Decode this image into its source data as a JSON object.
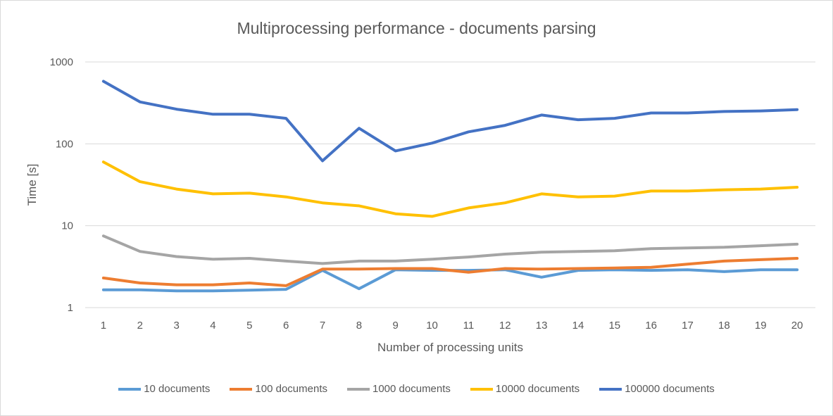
{
  "chart_data": {
    "type": "line",
    "title": "Multiprocessing performance - documents parsing",
    "xlabel": "Number of processing units",
    "ylabel": "Time [s]",
    "yscale": "log",
    "ylim": [
      1,
      1000
    ],
    "yticks": [
      "1",
      "10",
      "100",
      "1000"
    ],
    "grid": true,
    "legend_position": "bottom",
    "categories": [
      "1",
      "2",
      "3",
      "4",
      "5",
      "6",
      "7",
      "8",
      "9",
      "10",
      "11",
      "12",
      "13",
      "14",
      "15",
      "16",
      "17",
      "18",
      "19",
      "20"
    ],
    "series": [
      {
        "name": "10 documents",
        "color": "#5b9bd5",
        "values": [
          1.65,
          1.65,
          1.6,
          1.6,
          1.63,
          1.67,
          2.85,
          1.7,
          2.9,
          2.85,
          2.85,
          2.9,
          2.35,
          2.85,
          2.9,
          2.85,
          2.9,
          2.75,
          2.9,
          2.9
        ]
      },
      {
        "name": "100 documents",
        "color": "#ed7d31",
        "values": [
          2.3,
          2.0,
          1.9,
          1.9,
          2.0,
          1.85,
          2.95,
          2.95,
          3.0,
          3.0,
          2.7,
          3.0,
          2.95,
          3.0,
          3.05,
          3.1,
          3.4,
          3.7,
          3.85,
          4.0
        ]
      },
      {
        "name": "1000 documents",
        "color": "#a5a5a5",
        "values": [
          7.5,
          4.85,
          4.2,
          3.9,
          4.0,
          3.7,
          3.45,
          3.7,
          3.7,
          3.9,
          4.15,
          4.5,
          4.75,
          4.85,
          4.95,
          5.25,
          5.35,
          5.45,
          5.7,
          5.95
        ]
      },
      {
        "name": "10000 documents",
        "color": "#ffc000",
        "values": [
          60,
          34.5,
          28,
          24.5,
          25,
          22.5,
          19,
          17.5,
          14,
          13,
          16.5,
          19,
          24.5,
          22.5,
          23,
          26.5,
          26.5,
          27.5,
          28,
          29.5
        ]
      },
      {
        "name": "100000 documents",
        "color": "#4472c4",
        "values": [
          580,
          325,
          265,
          230,
          230,
          205,
          62,
          155,
          82,
          102,
          140,
          168,
          225,
          197,
          205,
          238,
          238,
          248,
          252,
          262
        ]
      }
    ]
  }
}
